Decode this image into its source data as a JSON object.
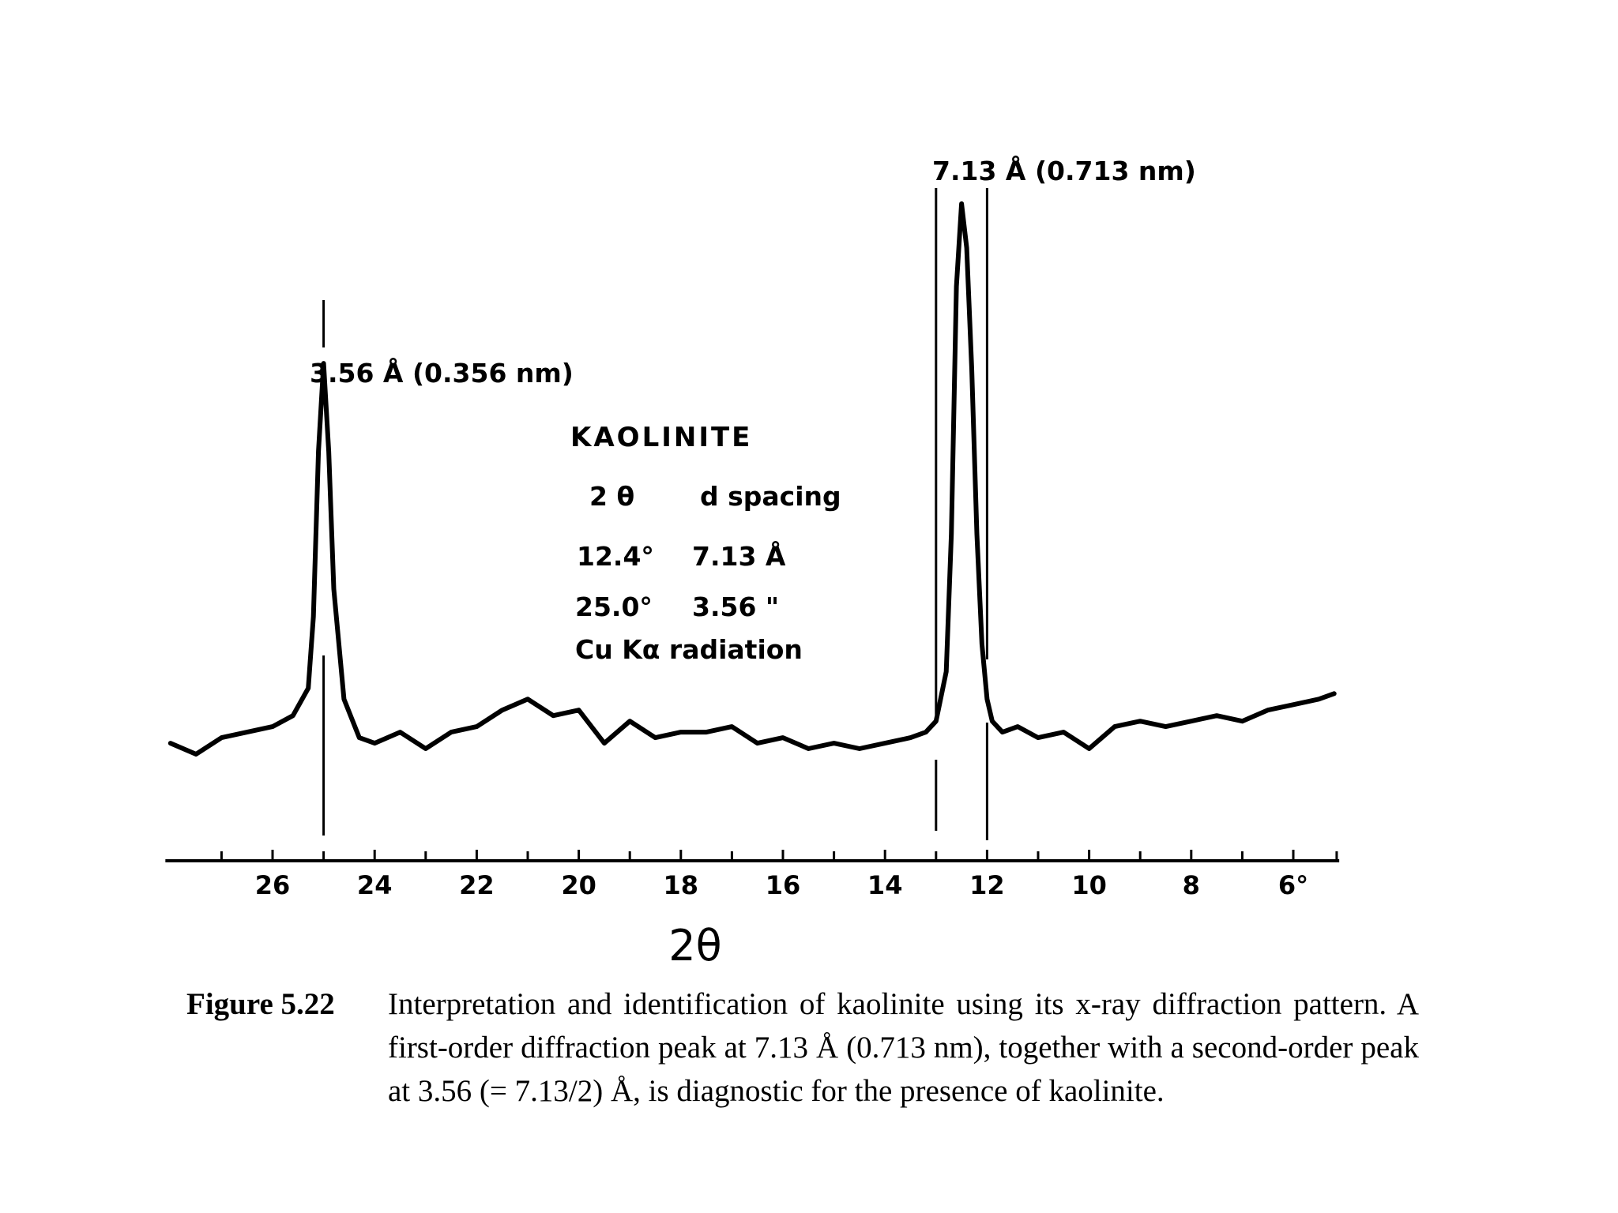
{
  "chart_data": {
    "type": "line",
    "xlabel": "2θ",
    "x_reversed": true,
    "xlim": [
      28.1,
      5.1
    ],
    "ticks": [
      {
        "value": 26,
        "label": "26"
      },
      {
        "value": 24,
        "label": "24"
      },
      {
        "value": 22,
        "label": "22"
      },
      {
        "value": 20,
        "label": "20"
      },
      {
        "value": 18,
        "label": "18"
      },
      {
        "value": 16,
        "label": "16"
      },
      {
        "value": 14,
        "label": "14"
      },
      {
        "value": 12,
        "label": "12"
      },
      {
        "value": 10,
        "label": "10"
      },
      {
        "value": 8,
        "label": "8"
      },
      {
        "value": 6,
        "label": "6°"
      }
    ],
    "minor_ticks": [
      27,
      25,
      23,
      21,
      19,
      17,
      15,
      13,
      11,
      9,
      7,
      5.15
    ],
    "intensity_relative": {
      "x": [
        28,
        27.5,
        27,
        26.5,
        26,
        25.6,
        25.3,
        25.2,
        25.1,
        25.0,
        24.9,
        24.8,
        24.6,
        24.3,
        24,
        23.5,
        23,
        22.5,
        22,
        21.5,
        21,
        20.5,
        20,
        19.5,
        19,
        18.5,
        18,
        17.5,
        17,
        16.5,
        16,
        15.5,
        15,
        14.5,
        14,
        13.5,
        13.2,
        13.0,
        12.8,
        12.7,
        12.6,
        12.5,
        12.4,
        12.3,
        12.2,
        12.1,
        12.0,
        11.9,
        11.7,
        11.4,
        11,
        10.5,
        10,
        9.5,
        9,
        8.5,
        8,
        7.5,
        7,
        6.5,
        6,
        5.5,
        5.2
      ],
      "y": [
        0.02,
        0.0,
        0.03,
        0.04,
        0.05,
        0.07,
        0.12,
        0.25,
        0.55,
        0.71,
        0.55,
        0.3,
        0.1,
        0.03,
        0.02,
        0.04,
        0.01,
        0.04,
        0.05,
        0.08,
        0.1,
        0.07,
        0.08,
        0.02,
        0.06,
        0.03,
        0.04,
        0.04,
        0.05,
        0.02,
        0.03,
        0.01,
        0.02,
        0.01,
        0.02,
        0.03,
        0.04,
        0.06,
        0.15,
        0.4,
        0.85,
        1.0,
        0.92,
        0.7,
        0.4,
        0.2,
        0.1,
        0.06,
        0.04,
        0.05,
        0.03,
        0.04,
        0.01,
        0.05,
        0.06,
        0.05,
        0.06,
        0.07,
        0.06,
        0.08,
        0.09,
        0.1,
        0.11
      ]
    },
    "peaks": [
      {
        "two_theta": 25.0,
        "label": "3.56 Å (0.356 nm)"
      },
      {
        "two_theta": 12.4,
        "label": "7.13 Å (0.713 nm)"
      }
    ],
    "marker_lines": [
      25.0,
      13.0,
      12.0
    ]
  },
  "inset": {
    "title": "KAOLINITE",
    "col1_header": "2 θ",
    "col2_header": "d spacing",
    "rows": [
      {
        "two_theta": "12.4°",
        "d": "7.13 Å"
      },
      {
        "two_theta": "25.0°",
        "d": "3.56 \""
      }
    ],
    "radiation": "Cu Kα radiation"
  },
  "caption": {
    "label": "Figure 5.22",
    "text": "Interpretation and identification of kaolinite using its x-ray diffraction pattern. A first-order diffraction peak at 7.13 Å (0.713 nm), together with a second-order peak at 3.56 (= 7.13/2) Å, is diagnostic for the presence of kaolinite."
  }
}
